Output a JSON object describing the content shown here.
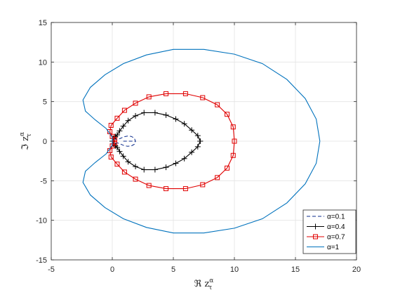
{
  "chart_data": {
    "type": "line",
    "title": "",
    "xlabel": "ℜ z",
    "ylabel": "ℑ z",
    "label_sup": "α",
    "label_sub": "τ",
    "xlim": [
      -5,
      20
    ],
    "ylim": [
      -15,
      15
    ],
    "xticks": [
      -5,
      0,
      5,
      10,
      15,
      20
    ],
    "yticks": [
      -15,
      -10,
      -5,
      0,
      5,
      10,
      15
    ],
    "xtick_labels": [
      "-5",
      "0",
      "5",
      "10",
      "15",
      "20"
    ],
    "ytick_labels": [
      "-15",
      "-10",
      "-5",
      "0",
      "5",
      "10",
      "15"
    ],
    "grid": true,
    "legend_position": "bottom-right",
    "series": [
      {
        "name": "α=0.1",
        "color": "#0b2b8c",
        "style": "dashed",
        "marker": "none",
        "points": [
          [
            0.9,
            0.0
          ],
          [
            1.9,
            0.0
          ],
          [
            1.8,
            0.4
          ],
          [
            1.55,
            0.6
          ],
          [
            1.25,
            0.65
          ],
          [
            0.95,
            0.55
          ],
          [
            0.65,
            0.35
          ],
          [
            0.4,
            0.2
          ],
          [
            0.15,
            0.3
          ],
          [
            0.0,
            0.15
          ],
          [
            0.0,
            -0.15
          ],
          [
            0.15,
            -0.3
          ],
          [
            0.4,
            -0.2
          ],
          [
            0.65,
            -0.35
          ],
          [
            0.95,
            -0.55
          ],
          [
            1.25,
            -0.65
          ],
          [
            1.55,
            -0.6
          ],
          [
            1.8,
            -0.4
          ],
          [
            1.9,
            0.0
          ]
        ]
      },
      {
        "name": "α=0.4",
        "color": "#000000",
        "style": "solid",
        "marker": "plus",
        "points": [
          [
            7.2,
            0.0
          ],
          [
            7.0,
            0.7
          ],
          [
            6.5,
            1.4
          ],
          [
            5.9,
            2.2
          ],
          [
            5.2,
            2.8
          ],
          [
            4.4,
            3.3
          ],
          [
            3.5,
            3.6
          ],
          [
            2.6,
            3.6
          ],
          [
            1.9,
            3.2
          ],
          [
            1.3,
            2.6
          ],
          [
            0.9,
            1.9
          ],
          [
            0.6,
            1.3
          ],
          [
            0.4,
            0.8
          ],
          [
            0.25,
            0.6
          ],
          [
            0.1,
            0.35
          ],
          [
            0.0,
            0.0
          ],
          [
            0.1,
            -0.35
          ],
          [
            0.25,
            -0.6
          ],
          [
            0.4,
            -0.8
          ],
          [
            0.6,
            -1.3
          ],
          [
            0.9,
            -1.9
          ],
          [
            1.3,
            -2.6
          ],
          [
            1.9,
            -3.2
          ],
          [
            2.6,
            -3.6
          ],
          [
            3.5,
            -3.6
          ],
          [
            4.4,
            -3.3
          ],
          [
            5.2,
            -2.8
          ],
          [
            5.9,
            -2.2
          ],
          [
            6.5,
            -1.4
          ],
          [
            7.0,
            -0.7
          ],
          [
            7.2,
            0.0
          ]
        ]
      },
      {
        "name": "α=0.7",
        "color": "#e00000",
        "style": "solid",
        "marker": "square",
        "points": [
          [
            10.0,
            0.0
          ],
          [
            9.9,
            1.8
          ],
          [
            9.4,
            3.4
          ],
          [
            8.6,
            4.6
          ],
          [
            7.4,
            5.5
          ],
          [
            6.0,
            6.0
          ],
          [
            4.4,
            6.0
          ],
          [
            3.0,
            5.6
          ],
          [
            1.9,
            4.8
          ],
          [
            1.0,
            3.9
          ],
          [
            0.4,
            2.9
          ],
          [
            -0.1,
            2.0
          ],
          [
            -0.2,
            1.2
          ],
          [
            0.0,
            0.6
          ],
          [
            0.2,
            0.2
          ],
          [
            0.2,
            -0.2
          ],
          [
            0.0,
            -0.6
          ],
          [
            -0.2,
            -1.2
          ],
          [
            -0.1,
            -2.0
          ],
          [
            0.4,
            -2.9
          ],
          [
            1.0,
            -3.9
          ],
          [
            1.9,
            -4.8
          ],
          [
            3.0,
            -5.6
          ],
          [
            4.4,
            -6.0
          ],
          [
            6.0,
            -6.0
          ],
          [
            7.4,
            -5.5
          ],
          [
            8.6,
            -4.6
          ],
          [
            9.4,
            -3.4
          ],
          [
            9.9,
            -1.8
          ],
          [
            10.0,
            0.0
          ]
        ]
      },
      {
        "name": "α=1",
        "color": "#0072bd",
        "style": "solid",
        "marker": "none",
        "points": [
          [
            17.0,
            0.0
          ],
          [
            16.7,
            2.8
          ],
          [
            15.8,
            5.4
          ],
          [
            14.3,
            7.8
          ],
          [
            12.3,
            9.8
          ],
          [
            10.0,
            11.0
          ],
          [
            7.5,
            11.6
          ],
          [
            5.0,
            11.6
          ],
          [
            2.8,
            10.9
          ],
          [
            0.9,
            9.8
          ],
          [
            -0.6,
            8.4
          ],
          [
            -1.8,
            6.8
          ],
          [
            -2.4,
            5.2
          ],
          [
            -2.2,
            3.8
          ],
          [
            -1.4,
            2.7
          ],
          [
            -0.5,
            1.6
          ],
          [
            0.0,
            0.5
          ],
          [
            0.0,
            -0.5
          ],
          [
            -0.5,
            -1.6
          ],
          [
            -1.4,
            -2.7
          ],
          [
            -2.2,
            -3.8
          ],
          [
            -2.4,
            -5.2
          ],
          [
            -1.8,
            -6.8
          ],
          [
            -0.6,
            -8.4
          ],
          [
            0.9,
            -9.8
          ],
          [
            2.8,
            -10.9
          ],
          [
            5.0,
            -11.6
          ],
          [
            7.5,
            -11.6
          ],
          [
            10.0,
            -11.0
          ],
          [
            12.3,
            -9.8
          ],
          [
            14.3,
            -7.8
          ],
          [
            15.8,
            -5.4
          ],
          [
            16.7,
            -2.8
          ],
          [
            17.0,
            0.0
          ]
        ]
      }
    ]
  }
}
